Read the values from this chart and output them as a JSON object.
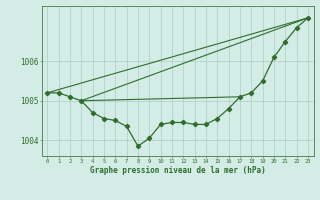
{
  "hours": [
    0,
    1,
    2,
    3,
    4,
    5,
    6,
    7,
    8,
    9,
    10,
    11,
    12,
    13,
    14,
    15,
    16,
    17,
    18,
    19,
    20,
    21,
    22,
    23
  ],
  "pressure": [
    1005.2,
    1005.2,
    1005.1,
    1005.0,
    1004.7,
    1004.55,
    1004.5,
    1004.35,
    1003.85,
    1004.05,
    1004.4,
    1004.45,
    1004.45,
    1004.4,
    1004.4,
    1004.55,
    1004.8,
    1005.1,
    1005.2,
    1005.5,
    1006.1,
    1006.5,
    1006.85,
    1007.1
  ],
  "bg_color": "#d4ece6",
  "line_color": "#2d6e2d",
  "grid_color": "#aacfc4",
  "ylabel_left": [
    "1004",
    "1005",
    "1006"
  ],
  "yticks": [
    1004,
    1005,
    1006
  ],
  "xlabel": "Graphe pression niveau de la mer (hPa)",
  "xlim": [
    -0.5,
    23.5
  ],
  "ylim": [
    1003.6,
    1007.4
  ],
  "ref_line1_x": [
    0,
    23
  ],
  "ref_line1_y": [
    1005.2,
    1007.1
  ],
  "ref_line2_x": [
    3,
    23
  ],
  "ref_line2_y": [
    1005.0,
    1007.1
  ],
  "ref_line3_x": [
    3,
    17
  ],
  "ref_line3_y": [
    1005.0,
    1005.1
  ]
}
